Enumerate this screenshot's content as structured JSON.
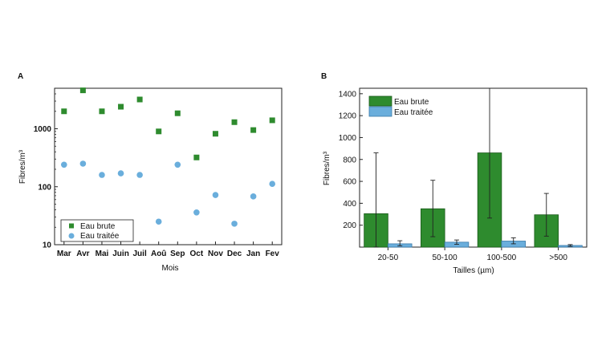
{
  "chart_data": [
    {
      "panel_label": "A",
      "type": "scatter",
      "xlabel": "Mois",
      "ylabel": "Fibres/m³",
      "yscale": "log",
      "ylim": [
        10,
        5000
      ],
      "yticks": [
        10,
        100,
        1000
      ],
      "ytick_labels": [
        "10",
        "100",
        "1000"
      ],
      "categories": [
        "Mar",
        "Avr",
        "Mai",
        "Juin",
        "Juil",
        "Aoû",
        "Sep",
        "Oct",
        "Nov",
        "Dec",
        "Jan",
        "Fev"
      ],
      "legend_position": "bottom-left",
      "series": [
        {
          "name": "Eau brute",
          "marker": "square",
          "color": "#2e8b2e",
          "values": [
            2000,
            4600,
            2000,
            2400,
            3200,
            900,
            1850,
            320,
            820,
            1300,
            950,
            1400
          ]
        },
        {
          "name": "Eau traitée",
          "marker": "circle",
          "color": "#6aaedc",
          "values": [
            240,
            250,
            160,
            170,
            160,
            25,
            240,
            36,
            72,
            23,
            68,
            112
          ]
        }
      ]
    },
    {
      "panel_label": "B",
      "type": "bar",
      "xlabel": "Tailles (µm)",
      "ylabel": "Fibres/m³",
      "ylim": [
        0,
        1450
      ],
      "yticks": [
        200,
        400,
        600,
        800,
        1000,
        1200,
        1400
      ],
      "categories": [
        "20-50",
        "50-100",
        "100-500",
        ">500"
      ],
      "legend_position": "top-left",
      "series": [
        {
          "name": "Eau brute",
          "color": "#2e8b2e",
          "edge": "#1a5a1a",
          "values": [
            305,
            350,
            860,
            295
          ],
          "err_low": [
            305,
            255,
            595,
            195
          ],
          "err_high": [
            555,
            260,
            590,
            195
          ]
        },
        {
          "name": "Eau traitée",
          "color": "#6aaedc",
          "edge": "#3b7aa8",
          "values": [
            30,
            45,
            55,
            15
          ],
          "err_low": [
            18,
            20,
            25,
            8
          ],
          "err_high": [
            28,
            20,
            30,
            8
          ]
        }
      ]
    }
  ]
}
